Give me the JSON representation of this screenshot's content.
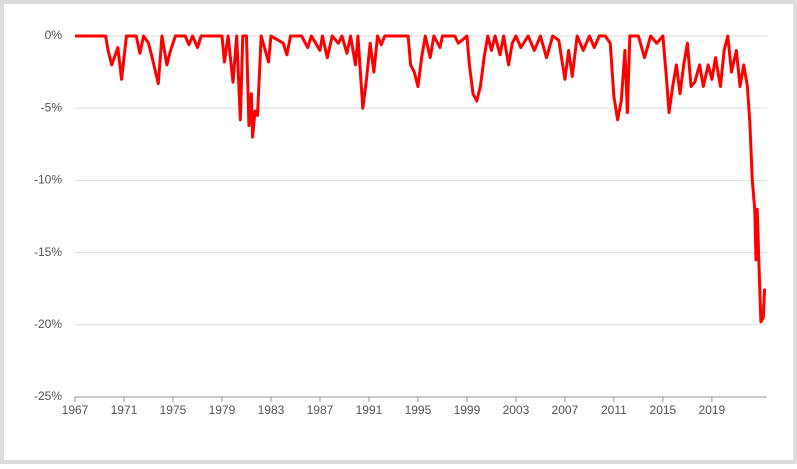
{
  "chart_data": {
    "type": "line",
    "x": [
      1967,
      1969.5,
      1969.7,
      1970,
      1970.5,
      1970.8,
      1971.2,
      1972,
      1972.3,
      1972.6,
      1973,
      1973.3,
      1973.8,
      1974.1,
      1974.5,
      1974.8,
      1975.2,
      1976,
      1976.3,
      1976.6,
      1977,
      1977.3,
      1979,
      1979.2,
      1979.5,
      1979.9,
      1980.2,
      1980.5,
      1980.7,
      1981,
      1981.2,
      1981.4,
      1981.5,
      1981.7,
      1981.9,
      1982.2,
      1982.8,
      1983,
      1984,
      1984.3,
      1984.6,
      1985.5,
      1986,
      1986.3,
      1987,
      1987.2,
      1987.6,
      1988,
      1988.5,
      1988.8,
      1989.2,
      1989.5,
      1989.9,
      1990.1,
      1990.5,
      1990.8,
      1991.1,
      1991.4,
      1991.7,
      1992,
      1992.3,
      1994.2,
      1994.4,
      1994.7,
      1995,
      1995.3,
      1995.6,
      1996,
      1996.3,
      1996.8,
      1997,
      1998,
      1998.3,
      1999,
      1999.2,
      1999.5,
      1999.8,
      2000.1,
      2000.4,
      2000.7,
      2001,
      2001.3,
      2001.7,
      2002,
      2002.4,
      2002.7,
      2003,
      2003.4,
      2004,
      2004.5,
      2005,
      2005.5,
      2006,
      2006.5,
      2007,
      2007.3,
      2007.6,
      2008,
      2008.5,
      2009,
      2009.4,
      2009.8,
      2010.3,
      2010.7,
      2011,
      2011.3,
      2011.6,
      2011.9,
      2012.1,
      2012.3,
      2013,
      2013.5,
      2014,
      2014.5,
      2015,
      2015.3,
      2015.5,
      2015.8,
      2016.1,
      2016.4,
      2016.7,
      2017,
      2017.3,
      2017.6,
      2018,
      2018.3,
      2018.7,
      2019,
      2019.3,
      2019.7,
      2020,
      2020.3,
      2020.6,
      2021,
      2021.3,
      2021.6,
      2021.9,
      2022.1,
      2022.3,
      2022.5,
      2022.6,
      2022.7,
      2022.85,
      2023,
      2023.2,
      2023.3
    ],
    "values": [
      0,
      0,
      -1,
      -2,
      -0.8,
      -3,
      0,
      0,
      -1.2,
      0,
      -0.5,
      -1.5,
      -3.3,
      0,
      -2,
      -1,
      0,
      0,
      -0.6,
      0,
      -0.8,
      0,
      0,
      -1.8,
      0,
      -3.2,
      0,
      -5.8,
      0,
      0,
      -6.2,
      -4,
      -7,
      -5.2,
      -5.5,
      0,
      -1.8,
      0,
      -0.5,
      -1.3,
      0,
      0,
      -0.8,
      0,
      -1,
      0,
      -1.5,
      0,
      -0.5,
      0,
      -1.2,
      0,
      -2,
      0,
      -5,
      -3,
      -0.5,
      -2.5,
      0,
      -0.6,
      0,
      0,
      -2,
      -2.5,
      -3.5,
      -1.5,
      0,
      -1.5,
      0,
      -0.8,
      0,
      0,
      -0.5,
      0,
      -2,
      -4,
      -4.5,
      -3.5,
      -1.5,
      0,
      -1,
      0,
      -1.3,
      0,
      -2,
      -0.5,
      0,
      -0.8,
      0,
      -1,
      0,
      -1.5,
      0,
      -0.3,
      -3,
      -1,
      -2.8,
      0,
      -1,
      0,
      -0.8,
      0,
      0,
      -0.5,
      -4.2,
      -5.8,
      -4.5,
      -1,
      -5.3,
      0,
      0,
      -1.5,
      0,
      -0.5,
      0,
      -3,
      -5.3,
      -3.5,
      -2,
      -4,
      -2,
      -0.5,
      -3.5,
      -3.2,
      -2,
      -3.5,
      -2,
      -3,
      -1.5,
      -3.5,
      -1,
      0,
      -2.5,
      -1,
      -3.5,
      -2,
      -3.5,
      -6,
      -10,
      -12,
      -15.5,
      -12,
      -16,
      -19.8,
      -19.5,
      -17.5
    ],
    "color": "#ff0000",
    "xlim": [
      1967,
      2023.5
    ],
    "xticks": [
      1967,
      1971,
      1975,
      1979,
      1983,
      1987,
      1991,
      1995,
      1999,
      2003,
      2007,
      2011,
      2015,
      2019
    ],
    "ylim": [
      -25,
      0
    ],
    "yticks": [
      {
        "value": 0,
        "label": "0%"
      },
      {
        "value": -5,
        "label": "-5%"
      },
      {
        "value": -10,
        "label": "-10%"
      },
      {
        "value": -15,
        "label": "-15%"
      },
      {
        "value": -20,
        "label": "-20%"
      },
      {
        "value": -25,
        "label": "-25%"
      }
    ],
    "grid": true
  }
}
